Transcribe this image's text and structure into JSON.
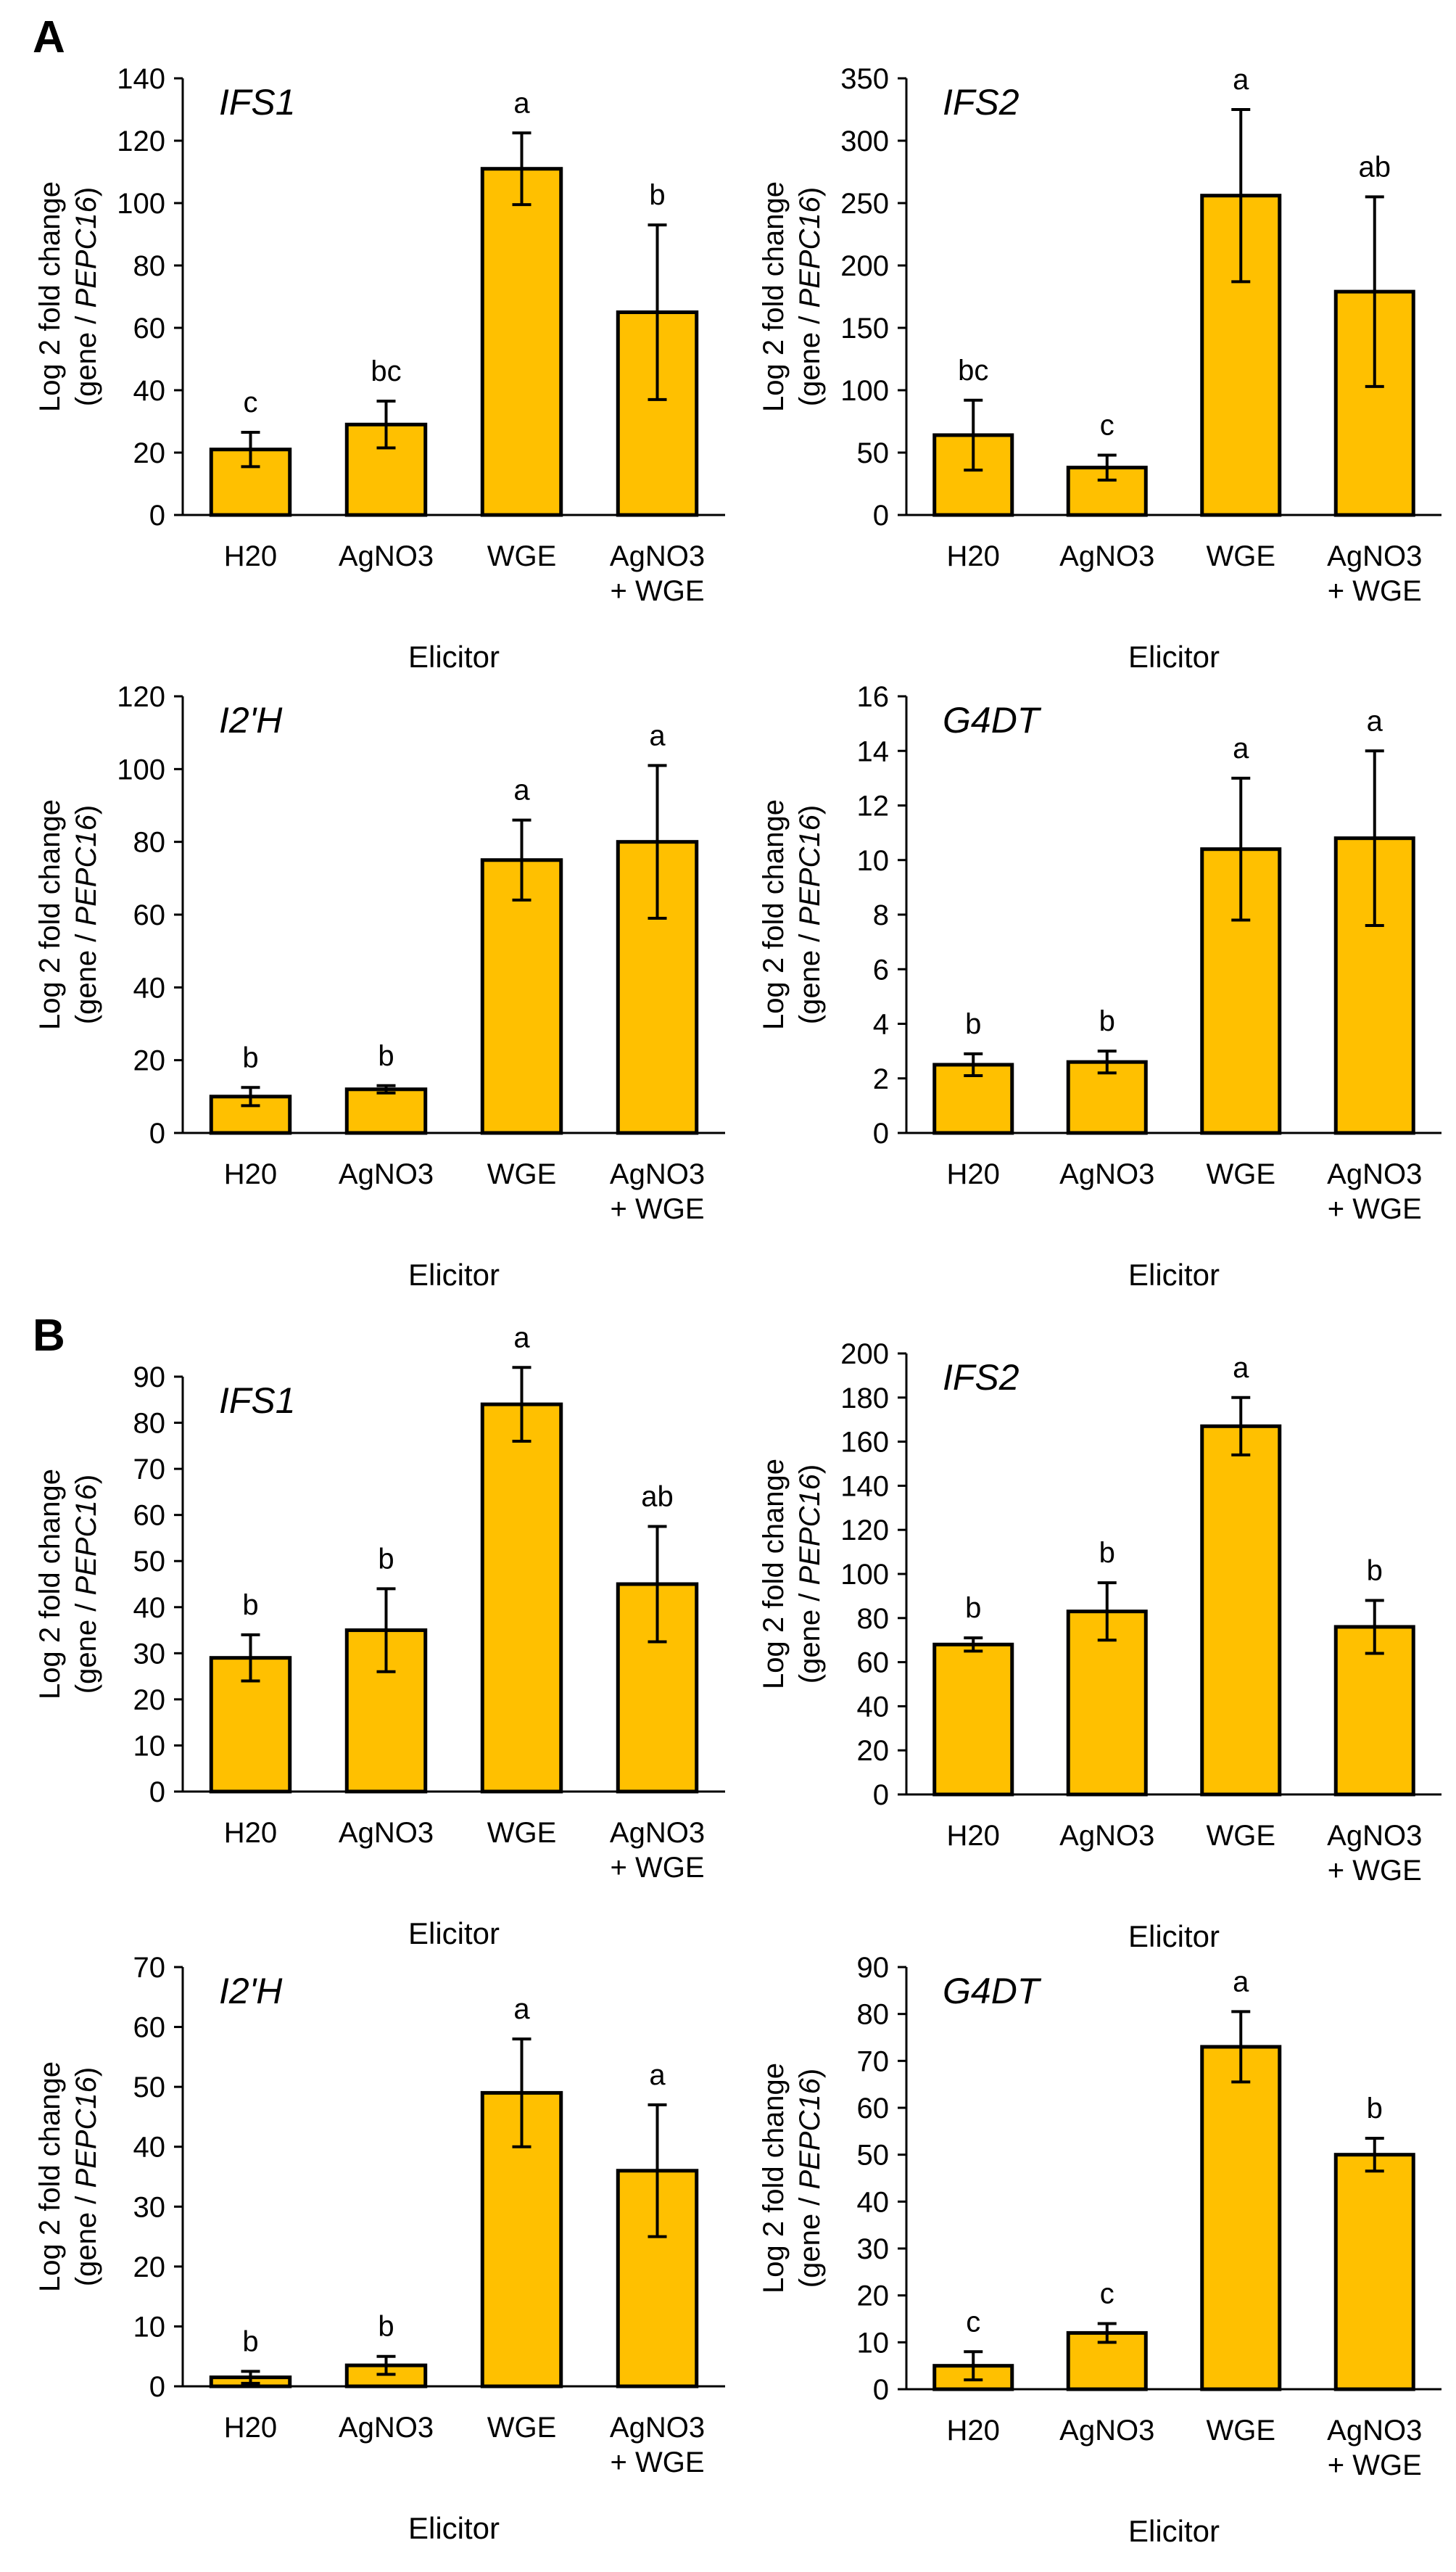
{
  "colors": {
    "bar_fill": "#FFC000",
    "axis": "#000000"
  },
  "panel_labels": [
    "A",
    "B"
  ],
  "ylabel": {
    "line1": "Log 2 fold change",
    "line2_prefix": "(gene / ",
    "line2_italic": "PEPC16",
    "line2_suffix": ")"
  },
  "chart_data": [
    {
      "type": "bar",
      "panel": "A",
      "title": "IFS1",
      "xlabel": "Elicitor",
      "categories": [
        "H20",
        "AgNO3",
        "WGE",
        "AgNO3|+ WGE"
      ],
      "values": [
        21,
        29,
        111,
        65
      ],
      "errors": [
        5.5,
        7.5,
        11.5,
        28
      ],
      "sig_letters": [
        "c",
        "bc",
        "a",
        "b"
      ],
      "ylim": [
        0,
        140
      ],
      "ytick_step": 20
    },
    {
      "type": "bar",
      "panel": "A",
      "title": "IFS2",
      "xlabel": "Elicitor",
      "categories": [
        "H20",
        "AgNO3",
        "WGE",
        "AgNO3|+ WGE"
      ],
      "values": [
        64,
        38,
        256,
        179
      ],
      "errors": [
        28,
        10,
        69,
        76
      ],
      "sig_letters": [
        "bc",
        "c",
        "a",
        "ab"
      ],
      "ylim": [
        0,
        350
      ],
      "ytick_step": 50
    },
    {
      "type": "bar",
      "panel": "A",
      "title": "I2'H",
      "xlabel": "Elicitor",
      "categories": [
        "H20",
        "AgNO3",
        "WGE",
        "AgNO3|+ WGE"
      ],
      "values": [
        10,
        12,
        75,
        80
      ],
      "errors": [
        2.5,
        1,
        11,
        21
      ],
      "sig_letters": [
        "b",
        "b",
        "a",
        "a"
      ],
      "ylim": [
        0,
        120
      ],
      "ytick_step": 20
    },
    {
      "type": "bar",
      "panel": "A",
      "title": "G4DT",
      "xlabel": "Elicitor",
      "categories": [
        "H20",
        "AgNO3",
        "WGE",
        "AgNO3|+ WGE"
      ],
      "values": [
        2.5,
        2.6,
        10.4,
        10.8
      ],
      "errors": [
        0.4,
        0.4,
        2.6,
        3.2
      ],
      "sig_letters": [
        "b",
        "b",
        "a",
        "a"
      ],
      "ylim": [
        0,
        16
      ],
      "ytick_step": 2
    },
    {
      "type": "bar",
      "panel": "B",
      "title": "IFS1",
      "xlabel": "Elicitor",
      "categories": [
        "H20",
        "AgNO3",
        "WGE",
        "AgNO3|+ WGE"
      ],
      "values": [
        29,
        35,
        84,
        45
      ],
      "errors": [
        5,
        9,
        8,
        12.5
      ],
      "sig_letters": [
        "b",
        "b",
        "a",
        "ab"
      ],
      "ylim": [
        0,
        90
      ],
      "ytick_step": 10
    },
    {
      "type": "bar",
      "panel": "B",
      "title": "IFS2",
      "xlabel": "Elicitor",
      "categories": [
        "H20",
        "AgNO3",
        "WGE",
        "AgNO3|+ WGE"
      ],
      "values": [
        68,
        83,
        167,
        76
      ],
      "errors": [
        3,
        13,
        13,
        12
      ],
      "sig_letters": [
        "b",
        "b",
        "a",
        "b"
      ],
      "ylim": [
        0,
        200
      ],
      "ytick_step": 20
    },
    {
      "type": "bar",
      "panel": "B",
      "title": "I2'H",
      "xlabel": "Elicitor",
      "categories": [
        "H20",
        "AgNO3",
        "WGE",
        "AgNO3|+ WGE"
      ],
      "values": [
        1.5,
        3.5,
        49,
        36
      ],
      "errors": [
        1,
        1.5,
        9,
        11
      ],
      "sig_letters": [
        "b",
        "b",
        "a",
        "a"
      ],
      "ylim": [
        0,
        70
      ],
      "ytick_step": 10
    },
    {
      "type": "bar",
      "panel": "B",
      "title": "G4DT",
      "xlabel": "Elicitor",
      "categories": [
        "H20",
        "AgNO3",
        "WGE",
        "AgNO3|+ WGE"
      ],
      "values": [
        5,
        12,
        73,
        50
      ],
      "errors": [
        3,
        2,
        7.5,
        3.5
      ],
      "sig_letters": [
        "c",
        "c",
        "a",
        "b"
      ],
      "ylim": [
        0,
        90
      ],
      "ytick_step": 10
    }
  ]
}
